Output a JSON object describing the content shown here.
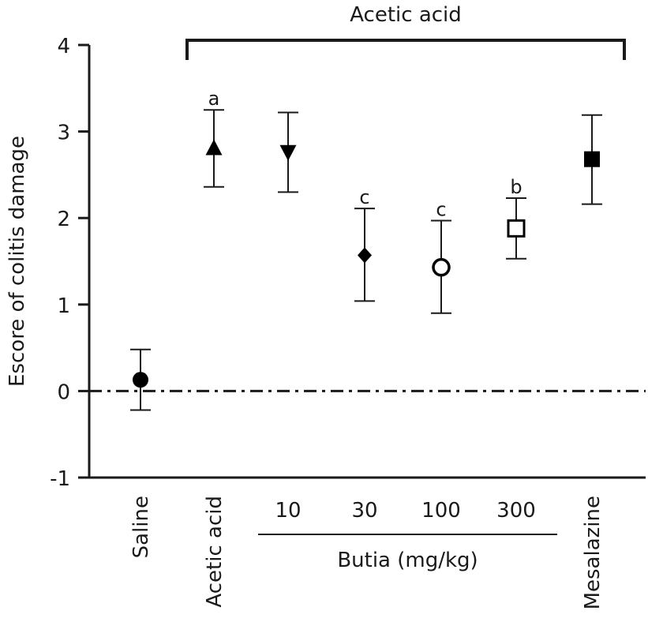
{
  "chart_data": {
    "type": "scatter",
    "ylabel": "Escore of colitis damage",
    "ylim": [
      -1,
      4
    ],
    "yticks": [
      -1,
      0,
      1,
      2,
      3,
      4
    ],
    "reference_line_y": 0,
    "categories": [
      "Saline",
      "Acetic acid",
      "10",
      "30",
      "100",
      "300",
      "Mesalazine"
    ],
    "points": [
      {
        "category": "Saline",
        "mean": 0.13,
        "err_low": -0.22,
        "err_high": 0.48,
        "marker": "circle-filled",
        "sig": ""
      },
      {
        "category": "Acetic acid",
        "mean": 2.8,
        "err_low": 2.36,
        "err_high": 3.25,
        "marker": "triangle-up",
        "sig": "a"
      },
      {
        "category": "10",
        "mean": 2.77,
        "err_low": 2.3,
        "err_high": 3.22,
        "marker": "triangle-down",
        "sig": ""
      },
      {
        "category": "30",
        "mean": 1.57,
        "err_low": 1.04,
        "err_high": 2.11,
        "marker": "diamond",
        "sig": "c"
      },
      {
        "category": "100",
        "mean": 1.43,
        "err_low": 0.9,
        "err_high": 1.97,
        "marker": "circle-open",
        "sig": "c"
      },
      {
        "category": "300",
        "mean": 1.88,
        "err_low": 1.53,
        "err_high": 2.23,
        "marker": "square-open",
        "sig": "b"
      },
      {
        "category": "Mesalazine",
        "mean": 2.68,
        "err_low": 2.16,
        "err_high": 3.19,
        "marker": "square-filled",
        "sig": ""
      }
    ],
    "bracket": {
      "label": "Acetic acid",
      "from": "Acetic acid",
      "to": "Mesalazine"
    },
    "group": {
      "label": "Butia (mg/kg)",
      "from": "10",
      "to": "300"
    },
    "rotated_categories": [
      "Saline",
      "Acetic acid",
      "Mesalazine"
    ]
  }
}
